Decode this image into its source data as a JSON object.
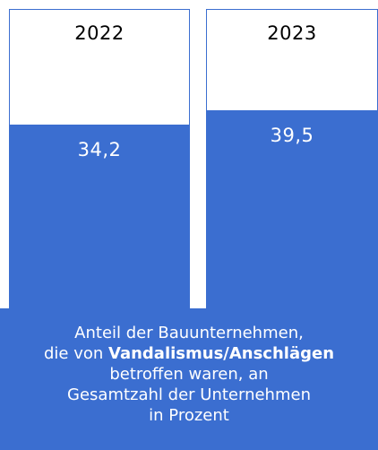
{
  "chart_data": {
    "type": "bar",
    "categories": [
      "2022",
      "2023"
    ],
    "values": [
      34.2,
      39.5
    ],
    "value_labels": [
      "34,2",
      "39,5"
    ],
    "ylabel": "Prozent",
    "ylim": [
      0,
      100
    ],
    "bar_color": "#3b6ed0",
    "caption": {
      "line1": "Anteil der Bauunternehmen,",
      "line2_pre": "die von ",
      "line2_em": "Vandalismus/Anschlägen",
      "line3": "betroffen waren, an",
      "line4": "Gesamtzahl der Unternehmen",
      "line5": "in Prozent"
    }
  }
}
